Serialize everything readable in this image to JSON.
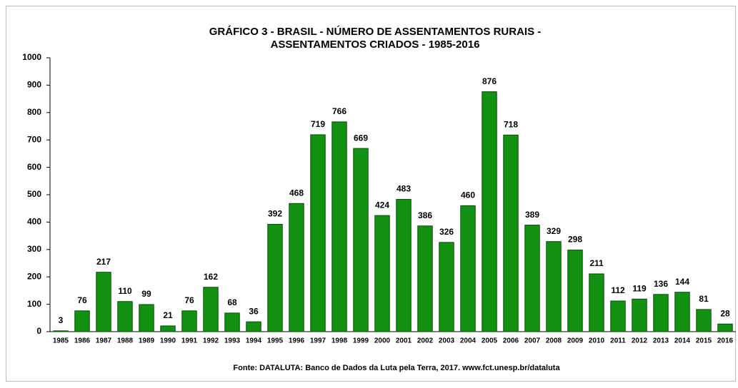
{
  "chart_data": {
    "type": "bar",
    "title": [
      "GRÁFICO 3 - BRASIL - NÚMERO DE ASSENTAMENTOS RURAIS -",
      "ASSENTAMENTOS CRIADOS - 1985-2016"
    ],
    "categories": [
      "1985",
      "1986",
      "1987",
      "1988",
      "1989",
      "1990",
      "1991",
      "1992",
      "1993",
      "1994",
      "1995",
      "1996",
      "1997",
      "1998",
      "1999",
      "2000",
      "2001",
      "2002",
      "2003",
      "2004",
      "2005",
      "2006",
      "2007",
      "2008",
      "2009",
      "2010",
      "2011",
      "2012",
      "2013",
      "2014",
      "2015",
      "2016"
    ],
    "values": [
      3,
      76,
      217,
      110,
      99,
      21,
      76,
      162,
      68,
      36,
      392,
      468,
      719,
      766,
      669,
      424,
      483,
      386,
      326,
      460,
      876,
      718,
      389,
      329,
      298,
      211,
      112,
      119,
      136,
      144,
      81,
      28
    ],
    "color": "#139113",
    "ylim": [
      0,
      1000
    ],
    "yticks": [
      0,
      100,
      200,
      300,
      400,
      500,
      600,
      700,
      800,
      900,
      1000
    ],
    "grid": false,
    "source": "Fonte: DATALUTA: Banco de Dados da Luta pela Terra, 2017. www.fct.unesp.br/dataluta"
  }
}
